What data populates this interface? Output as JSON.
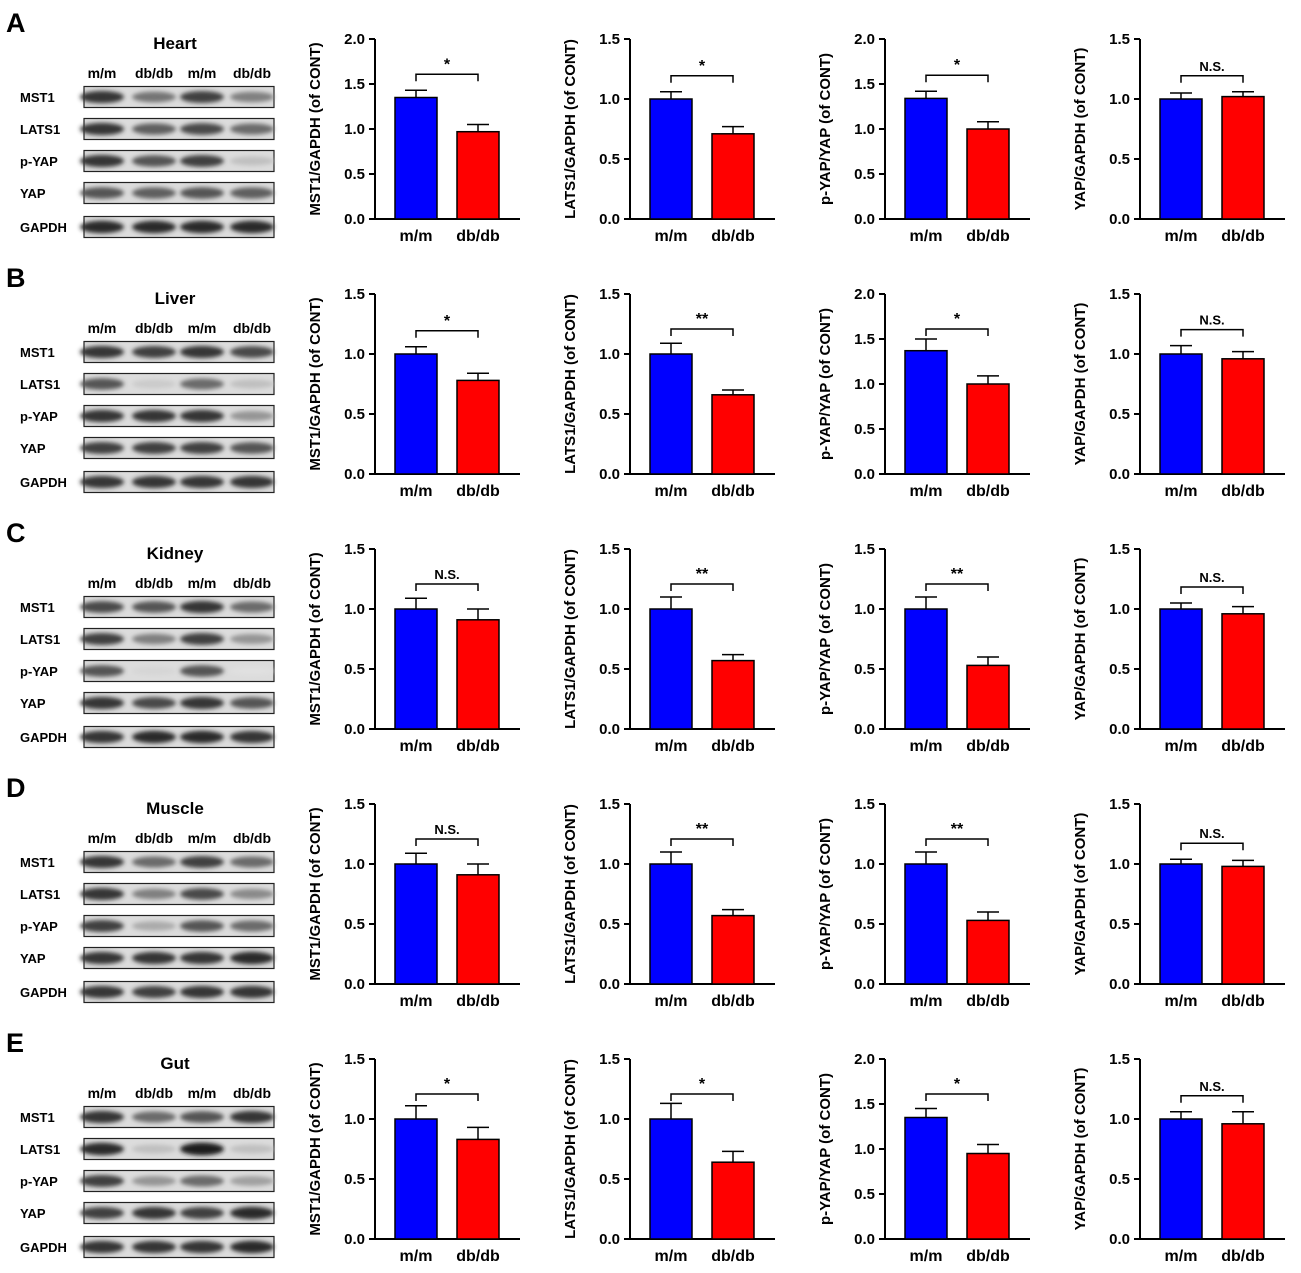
{
  "figure": {
    "group_labels": [
      "m/m",
      "db/db"
    ],
    "colors": {
      "m/m": "#0000ff",
      "db/db": "#ff0000",
      "axis": "#000000"
    },
    "panels": [
      {
        "letter": "A",
        "tissue": "Heart",
        "blot": {
          "lane_labels": [
            "m/m",
            "db/db",
            "m/m",
            "db/db"
          ],
          "proteins": [
            "MST1",
            "LATS1",
            "p-YAP",
            "YAP",
            "GAPDH"
          ],
          "intensity": [
            [
              0.85,
              0.55,
              0.8,
              0.5
            ],
            [
              0.85,
              0.65,
              0.75,
              0.6
            ],
            [
              0.85,
              0.7,
              0.8,
              0.2
            ],
            [
              0.7,
              0.65,
              0.7,
              0.65
            ],
            [
              0.9,
              0.9,
              0.9,
              0.9
            ]
          ]
        }
      },
      {
        "letter": "B",
        "tissue": "Liver",
        "blot": {
          "lane_labels": [
            "m/m",
            "db/db",
            "m/m",
            "db/db"
          ],
          "proteins": [
            "MST1",
            "LATS1",
            "p-YAP",
            "YAP",
            "GAPDH"
          ],
          "intensity": [
            [
              0.85,
              0.8,
              0.85,
              0.75
            ],
            [
              0.7,
              0.15,
              0.6,
              0.2
            ],
            [
              0.85,
              0.85,
              0.85,
              0.4
            ],
            [
              0.8,
              0.8,
              0.8,
              0.7
            ],
            [
              0.85,
              0.85,
              0.85,
              0.85
            ]
          ]
        }
      },
      {
        "letter": "C",
        "tissue": "Kidney",
        "blot": {
          "lane_labels": [
            "m/m",
            "db/db",
            "m/m",
            "db/db"
          ],
          "proteins": [
            "MST1",
            "LATS1",
            "p-YAP",
            "YAP",
            "GAPDH"
          ],
          "intensity": [
            [
              0.75,
              0.7,
              0.85,
              0.6
            ],
            [
              0.8,
              0.5,
              0.8,
              0.4
            ],
            [
              0.7,
              0.1,
              0.7,
              0.05
            ],
            [
              0.85,
              0.75,
              0.85,
              0.7
            ],
            [
              0.85,
              0.9,
              0.9,
              0.85
            ]
          ]
        }
      },
      {
        "letter": "D",
        "tissue": "Muscle",
        "blot": {
          "lane_labels": [
            "m/m",
            "db/db",
            "m/m",
            "db/db"
          ],
          "proteins": [
            "MST1",
            "LATS1",
            "p-YAP",
            "YAP",
            "GAPDH"
          ],
          "intensity": [
            [
              0.85,
              0.6,
              0.8,
              0.6
            ],
            [
              0.85,
              0.5,
              0.75,
              0.45
            ],
            [
              0.8,
              0.3,
              0.7,
              0.6
            ],
            [
              0.85,
              0.85,
              0.85,
              0.9
            ],
            [
              0.85,
              0.8,
              0.85,
              0.85
            ]
          ]
        }
      },
      {
        "letter": "E",
        "tissue": "Gut",
        "blot": {
          "lane_labels": [
            "m/m",
            "db/db",
            "m/m",
            "db/db"
          ],
          "proteins": [
            "MST1",
            "LATS1",
            "p-YAP",
            "YAP",
            "GAPDH"
          ],
          "intensity": [
            [
              0.85,
              0.6,
              0.7,
              0.85
            ],
            [
              0.9,
              0.2,
              0.95,
              0.2
            ],
            [
              0.8,
              0.4,
              0.6,
              0.35
            ],
            [
              0.8,
              0.85,
              0.8,
              0.9
            ],
            [
              0.85,
              0.85,
              0.85,
              0.9
            ]
          ]
        }
      }
    ]
  },
  "chart_data": [
    {
      "type": "bar",
      "panel": "A",
      "ylabel": "MST1/GAPDH (of CONT)",
      "categories": [
        "m/m",
        "db/db"
      ],
      "values": [
        1.35,
        0.97
      ],
      "errors": [
        0.08,
        0.08
      ],
      "ylim": [
        0,
        2.0
      ],
      "yticks": [
        "0.0",
        "0.5",
        "1.0",
        "1.5",
        "2.0"
      ],
      "significance": "*"
    },
    {
      "type": "bar",
      "panel": "A",
      "ylabel": "LATS1/GAPDH (of CONT)",
      "categories": [
        "m/m",
        "db/db"
      ],
      "values": [
        1.0,
        0.71
      ],
      "errors": [
        0.06,
        0.06
      ],
      "ylim": [
        0,
        1.5
      ],
      "yticks": [
        "0.0",
        "0.5",
        "1.0",
        "1.5"
      ],
      "significance": "*"
    },
    {
      "type": "bar",
      "panel": "A",
      "ylabel": "p-YAP/YAP (of CONT)",
      "categories": [
        "m/m",
        "db/db"
      ],
      "values": [
        1.34,
        1.0
      ],
      "errors": [
        0.08,
        0.08
      ],
      "ylim": [
        0,
        2.0
      ],
      "yticks": [
        "0.0",
        "0.5",
        "1.0",
        "1.5",
        "2.0"
      ],
      "significance": "*"
    },
    {
      "type": "bar",
      "panel": "A",
      "ylabel": "YAP/GAPDH (of CONT)",
      "categories": [
        "m/m",
        "db/db"
      ],
      "values": [
        1.0,
        1.02
      ],
      "errors": [
        0.05,
        0.04
      ],
      "ylim": [
        0,
        1.5
      ],
      "yticks": [
        "0.0",
        "0.5",
        "1.0",
        "1.5"
      ],
      "significance": "N.S."
    },
    {
      "type": "bar",
      "panel": "B",
      "ylabel": "MST1/GAPDH (of CONT)",
      "categories": [
        "m/m",
        "db/db"
      ],
      "values": [
        1.0,
        0.78
      ],
      "errors": [
        0.06,
        0.06
      ],
      "ylim": [
        0,
        1.5
      ],
      "yticks": [
        "0.0",
        "0.5",
        "1.0",
        "1.5"
      ],
      "significance": "*"
    },
    {
      "type": "bar",
      "panel": "B",
      "ylabel": "LATS1/GAPDH (of CONT)",
      "categories": [
        "m/m",
        "db/db"
      ],
      "values": [
        1.0,
        0.66
      ],
      "errors": [
        0.09,
        0.04
      ],
      "ylim": [
        0,
        1.5
      ],
      "yticks": [
        "0.0",
        "0.5",
        "1.0",
        "1.5"
      ],
      "significance": "**"
    },
    {
      "type": "bar",
      "panel": "B",
      "ylabel": "p-YAP/YAP (of CONT)",
      "categories": [
        "m/m",
        "db/db"
      ],
      "values": [
        1.37,
        1.0
      ],
      "errors": [
        0.13,
        0.09
      ],
      "ylim": [
        0,
        2.0
      ],
      "yticks": [
        "0.0",
        "0.5",
        "1.0",
        "1.5",
        "2.0"
      ],
      "significance": "*"
    },
    {
      "type": "bar",
      "panel": "B",
      "ylabel": "YAP/GAPDH (of CONT)",
      "categories": [
        "m/m",
        "db/db"
      ],
      "values": [
        1.0,
        0.96
      ],
      "errors": [
        0.07,
        0.06
      ],
      "ylim": [
        0,
        1.5
      ],
      "yticks": [
        "0.0",
        "0.5",
        "1.0",
        "1.5"
      ],
      "significance": "N.S."
    },
    {
      "type": "bar",
      "panel": "C",
      "ylabel": "MST1/GAPDH (of CONT)",
      "categories": [
        "m/m",
        "db/db"
      ],
      "values": [
        1.0,
        0.91
      ],
      "errors": [
        0.09,
        0.09
      ],
      "ylim": [
        0,
        1.5
      ],
      "yticks": [
        "0.0",
        "0.5",
        "1.0",
        "1.5"
      ],
      "significance": "N.S."
    },
    {
      "type": "bar",
      "panel": "C",
      "ylabel": "LATS1/GAPDH (of CONT)",
      "categories": [
        "m/m",
        "db/db"
      ],
      "values": [
        1.0,
        0.57
      ],
      "errors": [
        0.1,
        0.05
      ],
      "ylim": [
        0,
        1.5
      ],
      "yticks": [
        "0.0",
        "0.5",
        "1.0",
        "1.5"
      ],
      "significance": "**"
    },
    {
      "type": "bar",
      "panel": "C",
      "ylabel": "p-YAP/YAP (of CONT)",
      "categories": [
        "m/m",
        "db/db"
      ],
      "values": [
        1.0,
        0.53
      ],
      "errors": [
        0.1,
        0.07
      ],
      "ylim": [
        0,
        1.5
      ],
      "yticks": [
        "0.0",
        "0.5",
        "1.0",
        "1.5"
      ],
      "significance": "**"
    },
    {
      "type": "bar",
      "panel": "C",
      "ylabel": "YAP/GAPDH (of CONT)",
      "categories": [
        "m/m",
        "db/db"
      ],
      "values": [
        1.0,
        0.96
      ],
      "errors": [
        0.05,
        0.06
      ],
      "ylim": [
        0,
        1.5
      ],
      "yticks": [
        "0.0",
        "0.5",
        "1.0",
        "1.5"
      ],
      "significance": "N.S."
    },
    {
      "type": "bar",
      "panel": "D",
      "ylabel": "MST1/GAPDH (of CONT)",
      "categories": [
        "m/m",
        "db/db"
      ],
      "values": [
        1.0,
        0.91
      ],
      "errors": [
        0.09,
        0.09
      ],
      "ylim": [
        0,
        1.5
      ],
      "yticks": [
        "0.0",
        "0.5",
        "1.0",
        "1.5"
      ],
      "significance": "N.S."
    },
    {
      "type": "bar",
      "panel": "D",
      "ylabel": "LATS1/GAPDH (of CONT)",
      "categories": [
        "m/m",
        "db/db"
      ],
      "values": [
        1.0,
        0.57
      ],
      "errors": [
        0.1,
        0.05
      ],
      "ylim": [
        0,
        1.5
      ],
      "yticks": [
        "0.0",
        "0.5",
        "1.0",
        "1.5"
      ],
      "significance": "**"
    },
    {
      "type": "bar",
      "panel": "D",
      "ylabel": "p-YAP/YAP (of CONT)",
      "categories": [
        "m/m",
        "db/db"
      ],
      "values": [
        1.0,
        0.53
      ],
      "errors": [
        0.1,
        0.07
      ],
      "ylim": [
        0,
        1.5
      ],
      "yticks": [
        "0.0",
        "0.5",
        "1.0",
        "1.5"
      ],
      "significance": "**"
    },
    {
      "type": "bar",
      "panel": "D",
      "ylabel": "YAP/GAPDH (of CONT)",
      "categories": [
        "m/m",
        "db/db"
      ],
      "values": [
        1.0,
        0.98
      ],
      "errors": [
        0.04,
        0.05
      ],
      "ylim": [
        0,
        1.5
      ],
      "yticks": [
        "0.0",
        "0.5",
        "1.0",
        "1.5"
      ],
      "significance": "N.S."
    },
    {
      "type": "bar",
      "panel": "E",
      "ylabel": "MST1/GAPDH (of CONT)",
      "categories": [
        "m/m",
        "db/db"
      ],
      "values": [
        1.0,
        0.83
      ],
      "errors": [
        0.11,
        0.1
      ],
      "ylim": [
        0,
        1.5
      ],
      "yticks": [
        "0.0",
        "0.5",
        "1.0",
        "1.5"
      ],
      "significance": "*"
    },
    {
      "type": "bar",
      "panel": "E",
      "ylabel": "LATS1/GAPDH (of CONT)",
      "categories": [
        "m/m",
        "db/db"
      ],
      "values": [
        1.0,
        0.64
      ],
      "errors": [
        0.13,
        0.09
      ],
      "ylim": [
        0,
        1.5
      ],
      "yticks": [
        "0.0",
        "0.5",
        "1.0",
        "1.5"
      ],
      "significance": "*"
    },
    {
      "type": "bar",
      "panel": "E",
      "ylabel": "p-YAP/YAP (of CONT)",
      "categories": [
        "m/m",
        "db/db"
      ],
      "values": [
        1.35,
        0.95
      ],
      "errors": [
        0.1,
        0.1
      ],
      "ylim": [
        0,
        2.0
      ],
      "yticks": [
        "0.0",
        "0.5",
        "1.0",
        "1.5",
        "2.0"
      ],
      "significance": "*"
    },
    {
      "type": "bar",
      "panel": "E",
      "ylabel": "YAP/GAPDH (of CONT)",
      "categories": [
        "m/m",
        "db/db"
      ],
      "values": [
        1.0,
        0.96
      ],
      "errors": [
        0.06,
        0.1
      ],
      "ylim": [
        0,
        1.5
      ],
      "yticks": [
        "0.0",
        "0.5",
        "1.0",
        "1.5"
      ],
      "significance": "N.S."
    }
  ]
}
